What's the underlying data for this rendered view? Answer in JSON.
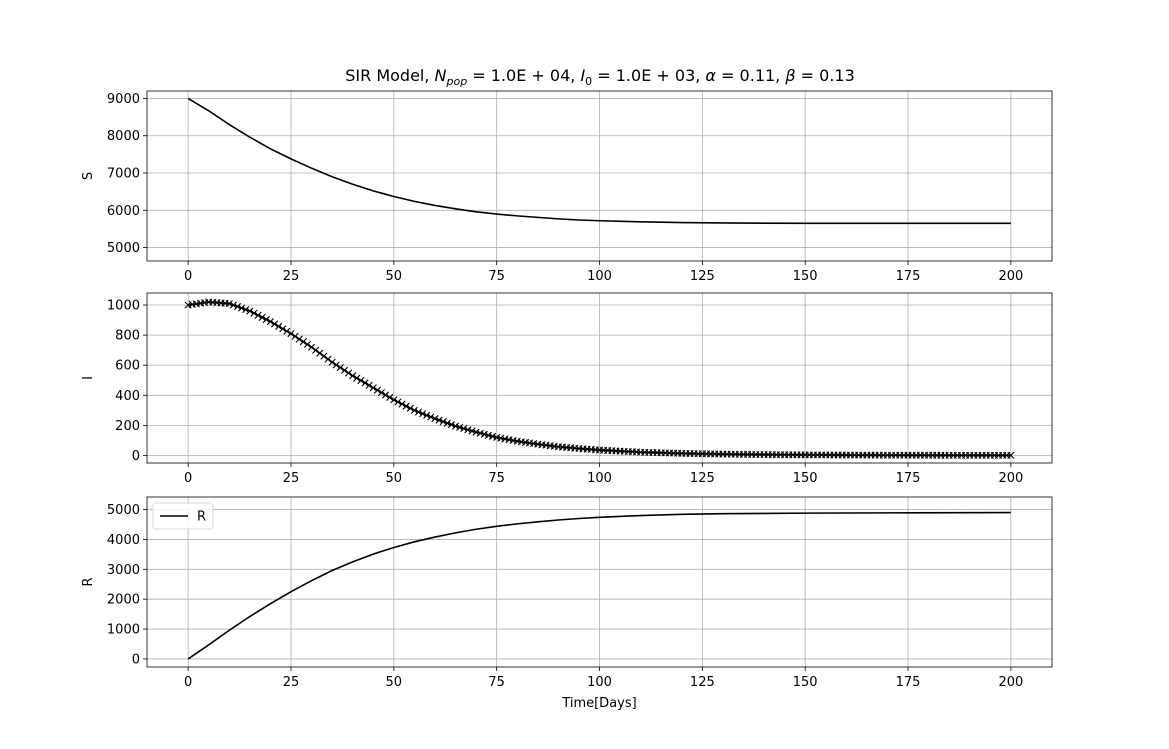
{
  "chart_data": [
    {
      "type": "line",
      "title": "SIR Model, N_pop = 1.0E+04, I_0 = 1.0E+03, α = 0.11, β = 0.13",
      "title_parts": {
        "lead": "SIR Model, ",
        "n_sym": "N",
        "n_sub": "pop",
        "n_val": " = 1.0E + 04, ",
        "i_sym": "I",
        "i_sub": "0",
        "i_val": " = 1.0E + 03, ",
        "alpha_sym": "α",
        "alpha_val": " = 0.11, ",
        "beta_sym": "β",
        "beta_val": " = 0.13"
      },
      "xlabel": "",
      "ylabel": "S",
      "xlim": [
        -10,
        210
      ],
      "ylim": [
        4640,
        9200
      ],
      "xticks": [
        0,
        25,
        50,
        75,
        100,
        125,
        150,
        175,
        200
      ],
      "yticks": [
        5000,
        6000,
        7000,
        8000,
        9000
      ],
      "grid": true,
      "line_color": "#000000",
      "marker": "none",
      "series": [
        {
          "values": [
            [
              0,
              9000
            ],
            [
              5,
              8670
            ],
            [
              10,
              8300
            ],
            [
              15,
              7960
            ],
            [
              20,
              7650
            ],
            [
              25,
              7380
            ],
            [
              30,
              7130
            ],
            [
              35,
              6900
            ],
            [
              40,
              6700
            ],
            [
              45,
              6520
            ],
            [
              50,
              6370
            ],
            [
              55,
              6240
            ],
            [
              60,
              6130
            ],
            [
              65,
              6040
            ],
            [
              70,
              5960
            ],
            [
              75,
              5900
            ],
            [
              80,
              5850
            ],
            [
              85,
              5810
            ],
            [
              90,
              5770
            ],
            [
              95,
              5740
            ],
            [
              100,
              5720
            ],
            [
              110,
              5690
            ],
            [
              120,
              5670
            ],
            [
              130,
              5660
            ],
            [
              140,
              5655
            ],
            [
              150,
              5652
            ],
            [
              175,
              5650
            ],
            [
              200,
              5650
            ]
          ]
        }
      ]
    },
    {
      "type": "scatter",
      "xlabel": "",
      "ylabel": "I",
      "xlim": [
        -10,
        210
      ],
      "ylim": [
        -50,
        1080
      ],
      "xticks": [
        0,
        25,
        50,
        75,
        100,
        125,
        150,
        175,
        200
      ],
      "yticks": [
        0,
        200,
        400,
        600,
        800,
        1000
      ],
      "grid": true,
      "line_color": "#000000",
      "marker": "x",
      "series": [
        {
          "values": [
            [
              0,
              1000
            ],
            [
              5,
              1020
            ],
            [
              10,
              1010
            ],
            [
              15,
              960
            ],
            [
              20,
              890
            ],
            [
              25,
              810
            ],
            [
              30,
              720
            ],
            [
              35,
              620
            ],
            [
              40,
              530
            ],
            [
              45,
              450
            ],
            [
              50,
              370
            ],
            [
              55,
              300
            ],
            [
              60,
              245
            ],
            [
              65,
              195
            ],
            [
              70,
              155
            ],
            [
              75,
              120
            ],
            [
              80,
              95
            ],
            [
              85,
              75
            ],
            [
              90,
              58
            ],
            [
              95,
              46
            ],
            [
              100,
              36
            ],
            [
              110,
              22
            ],
            [
              120,
              14
            ],
            [
              130,
              9
            ],
            [
              140,
              6
            ],
            [
              150,
              4
            ],
            [
              160,
              3
            ],
            [
              170,
              2
            ],
            [
              180,
              1.5
            ],
            [
              190,
              1
            ],
            [
              200,
              1
            ]
          ]
        }
      ]
    },
    {
      "type": "line",
      "xlabel": "Time[Days]",
      "ylabel": "R",
      "xlim": [
        -10,
        210
      ],
      "ylim": [
        -270,
        5420
      ],
      "xticks": [
        0,
        25,
        50,
        75,
        100,
        125,
        150,
        175,
        200
      ],
      "yticks": [
        0,
        1000,
        2000,
        3000,
        4000,
        5000
      ],
      "grid": true,
      "legend": {
        "position": "top-left",
        "entries": [
          "R"
        ]
      },
      "line_color": "#000000",
      "marker": "none",
      "series": [
        {
          "name": "R",
          "values": [
            [
              0,
              0
            ],
            [
              5,
              470
            ],
            [
              10,
              960
            ],
            [
              15,
              1420
            ],
            [
              20,
              1850
            ],
            [
              25,
              2250
            ],
            [
              30,
              2620
            ],
            [
              35,
              2960
            ],
            [
              40,
              3250
            ],
            [
              45,
              3510
            ],
            [
              50,
              3730
            ],
            [
              55,
              3920
            ],
            [
              60,
              4080
            ],
            [
              65,
              4220
            ],
            [
              70,
              4340
            ],
            [
              75,
              4440
            ],
            [
              80,
              4520
            ],
            [
              85,
              4590
            ],
            [
              90,
              4650
            ],
            [
              95,
              4700
            ],
            [
              100,
              4740
            ],
            [
              110,
              4800
            ],
            [
              120,
              4840
            ],
            [
              130,
              4860
            ],
            [
              140,
              4870
            ],
            [
              150,
              4880
            ],
            [
              175,
              4890
            ],
            [
              200,
              4900
            ]
          ]
        }
      ]
    }
  ]
}
